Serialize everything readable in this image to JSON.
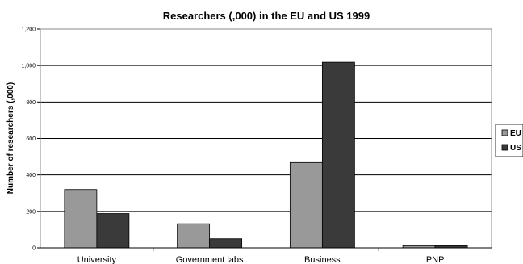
{
  "chart_data": {
    "type": "bar",
    "title": "Researchers (,000) in the EU and US 1999",
    "xlabel": "",
    "ylabel": "Number of researchers (,000)",
    "categories": [
      "University",
      "Government labs",
      "Business",
      "PNP"
    ],
    "series": [
      {
        "name": "EU",
        "values": [
          320,
          132,
          468,
          12
        ],
        "color": "#999999"
      },
      {
        "name": "US",
        "values": [
          188,
          50,
          1018,
          12
        ],
        "color": "#3a3a3a"
      }
    ],
    "ylim": [
      0,
      1200
    ],
    "yticks": [
      0,
      200,
      400,
      600,
      800,
      1000,
      1200
    ],
    "ytick_labels": [
      "0",
      "200",
      "400",
      "600",
      "800",
      "1,000",
      "1,200"
    ],
    "grid": true,
    "legend": "right"
  }
}
